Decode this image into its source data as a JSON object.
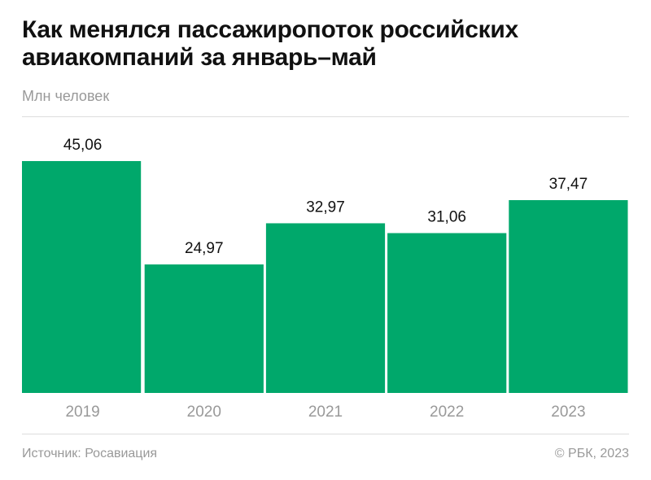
{
  "chart_data": {
    "type": "bar",
    "title": "Как менялся пассажиропоток российских авиакомпаний за январь–май",
    "subtitle": "Млн человек",
    "categories": [
      "2019",
      "2020",
      "2021",
      "2022",
      "2023"
    ],
    "values": [
      45.06,
      24.97,
      32.97,
      31.06,
      37.47
    ],
    "value_labels": [
      "45,06",
      "24,97",
      "32,97",
      "31,06",
      "37,47"
    ],
    "color": "#00a86b",
    "ylim": [
      0,
      53.75
    ],
    "source": "Источник: Росавиация",
    "credit": "© РБК, 2023"
  }
}
